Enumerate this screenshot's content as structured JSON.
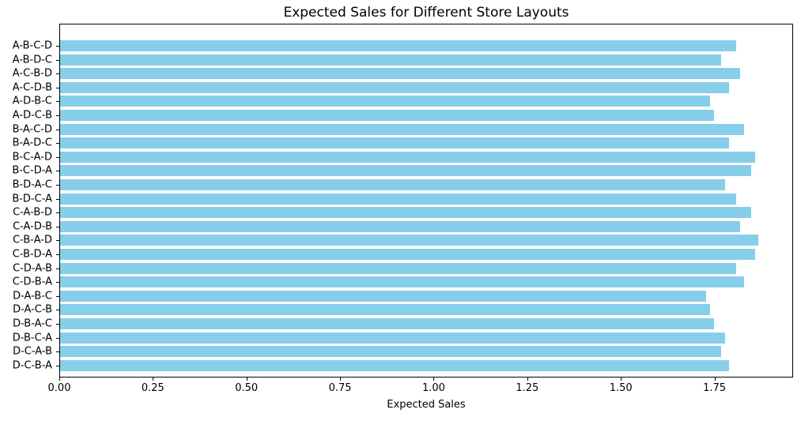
{
  "chart_data": {
    "type": "bar",
    "orientation": "horizontal",
    "title": "Expected Sales for Different Store Layouts",
    "xlabel": "Expected Sales",
    "ylabel": "",
    "categories": [
      "A-B-C-D",
      "A-B-D-C",
      "A-C-B-D",
      "A-C-D-B",
      "A-D-B-C",
      "A-D-C-B",
      "B-A-C-D",
      "B-A-D-C",
      "B-C-A-D",
      "B-C-D-A",
      "B-D-A-C",
      "B-D-C-A",
      "C-A-B-D",
      "C-A-D-B",
      "C-B-A-D",
      "C-B-D-A",
      "C-D-A-B",
      "C-D-B-A",
      "D-A-B-C",
      "D-A-C-B",
      "D-B-A-C",
      "D-B-C-A",
      "D-C-A-B",
      "D-C-B-A"
    ],
    "values": [
      1.81,
      1.77,
      1.82,
      1.79,
      1.74,
      1.75,
      1.83,
      1.79,
      1.86,
      1.85,
      1.78,
      1.81,
      1.85,
      1.82,
      1.87,
      1.86,
      1.81,
      1.83,
      1.73,
      1.74,
      1.75,
      1.78,
      1.77,
      1.79
    ],
    "xlim": [
      0,
      1.96
    ],
    "xticks": [
      {
        "value": 0.0,
        "label": "0.00"
      },
      {
        "value": 0.25,
        "label": "0.25"
      },
      {
        "value": 0.5,
        "label": "0.50"
      },
      {
        "value": 0.75,
        "label": "0.75"
      },
      {
        "value": 1.0,
        "label": "1.00"
      },
      {
        "value": 1.25,
        "label": "1.25"
      },
      {
        "value": 1.5,
        "label": "1.50"
      },
      {
        "value": 1.75,
        "label": "1.75"
      }
    ],
    "bar_color": "#87CEEB",
    "grid": false,
    "legend": null
  }
}
